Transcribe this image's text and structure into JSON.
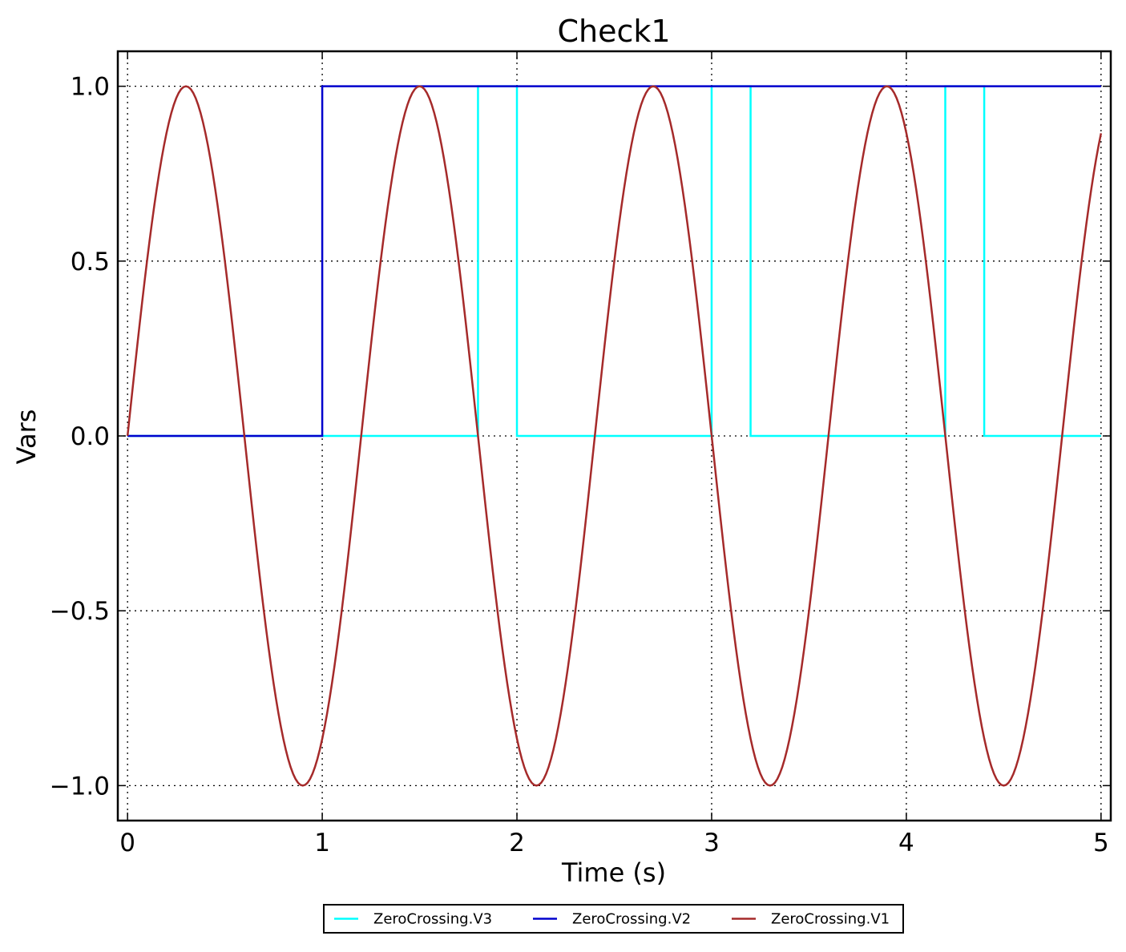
{
  "chart_data": {
    "type": "line",
    "title": "Check1",
    "xlabel": "Time (s)",
    "ylabel": "Vars",
    "xlim": [
      -0.05,
      5.05
    ],
    "ylim": [
      -1.1,
      1.1
    ],
    "x_ticks": [
      0,
      1,
      2,
      3,
      4,
      5
    ],
    "x_tick_labels": [
      "0",
      "1",
      "2",
      "3",
      "4",
      "5"
    ],
    "y_ticks": [
      1.0,
      0.5,
      0.0,
      -0.5,
      -1.0
    ],
    "y_tick_labels": [
      "1.0",
      "0.5",
      "0.0",
      "−0.5",
      "−1.0"
    ],
    "grid": true,
    "legend_position": "bottom-center, outside plot",
    "series": [
      {
        "name": "ZeroCrossing.V3",
        "color": "#00ffff",
        "style": "step",
        "x": [
          0,
          1,
          1,
          1.8,
          1.8,
          2.0,
          2.0,
          3.0,
          3.0,
          3.2,
          3.2,
          4.2,
          4.2,
          4.4,
          4.4,
          5.0
        ],
        "y": [
          0,
          0,
          0,
          0,
          1,
          1,
          0,
          0,
          1,
          1,
          0,
          0,
          1,
          1,
          0,
          0
        ]
      },
      {
        "name": "ZeroCrossing.V2",
        "color": "#0000cd",
        "style": "step",
        "x": [
          0,
          1,
          1,
          5.0
        ],
        "y": [
          0,
          0,
          1,
          1
        ]
      },
      {
        "name": "ZeroCrossing.V1",
        "color": "#a52a2a",
        "style": "sine",
        "amplitude": 1.0,
        "frequency_hz": 0.8333,
        "x_range": [
          0,
          5.0
        ]
      }
    ]
  }
}
